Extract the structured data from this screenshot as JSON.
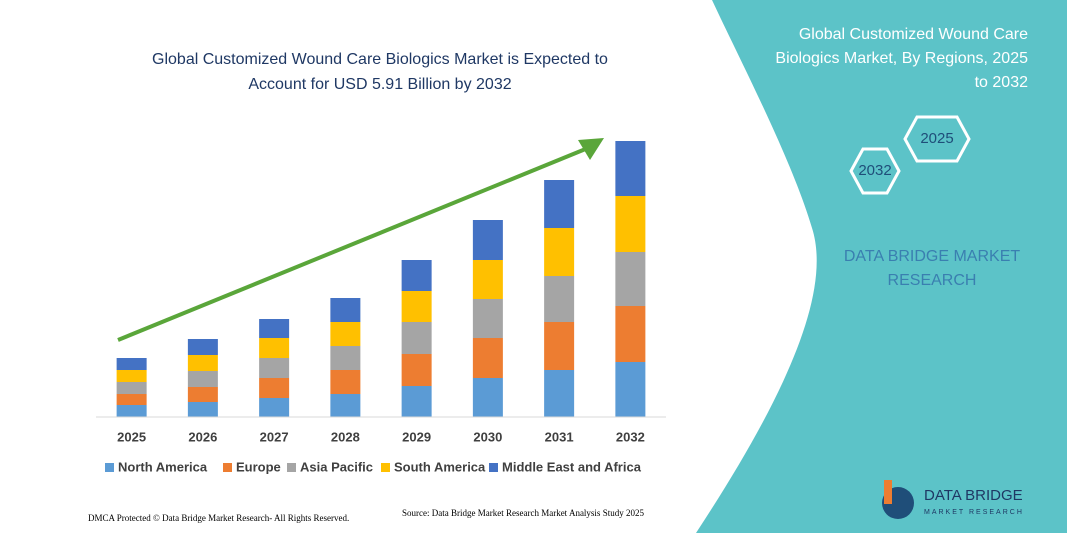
{
  "chart_data": {
    "type": "stacked_bar",
    "title": [
      "Global Customized Wound Care Biologics Market is Expected to",
      "Account for USD 5.91 Billion by 2032"
    ],
    "categories": [
      "2025",
      "2026",
      "2027",
      "2028",
      "2029",
      "2030",
      "2031",
      "2032"
    ],
    "series": [
      {
        "name": "North America",
        "color": "#5b9bd5",
        "values": [
          12,
          15,
          19,
          23,
          31,
          39,
          47,
          55
        ]
      },
      {
        "name": "Europe",
        "color": "#ed7d31",
        "values": [
          11,
          15,
          20,
          24,
          32,
          40,
          48,
          56
        ]
      },
      {
        "name": "Asia Pacific",
        "color": "#a5a5a5",
        "values": [
          12,
          16,
          20,
          24,
          32,
          39,
          46,
          54
        ]
      },
      {
        "name": "South America",
        "color": "#ffc000",
        "values": [
          12,
          16,
          20,
          24,
          31,
          39,
          48,
          56
        ]
      },
      {
        "name": "Middle East and Africa",
        "color": "#4472c4",
        "values": [
          12,
          16,
          19,
          24,
          31,
          40,
          48,
          55
        ]
      }
    ],
    "ylim": [
      0,
      280
    ],
    "legend": "bottom"
  },
  "side": {
    "title": [
      "Global Customized Wound Care",
      "Biologics Market, By Regions, 2025",
      "to 2032"
    ],
    "hex_start": "2025",
    "hex_end": "2032",
    "brand": [
      "DATA BRIDGE MARKET",
      "RESEARCH"
    ]
  },
  "footer": {
    "dmca": "DMCA Protected © Data Bridge Market Research- All Rights Reserved.",
    "source": "Source: Data Bridge Market Research Market Analysis Study 2025",
    "logo": "DATA BRIDGE",
    "logo_sub": "MARKET RESEARCH"
  }
}
